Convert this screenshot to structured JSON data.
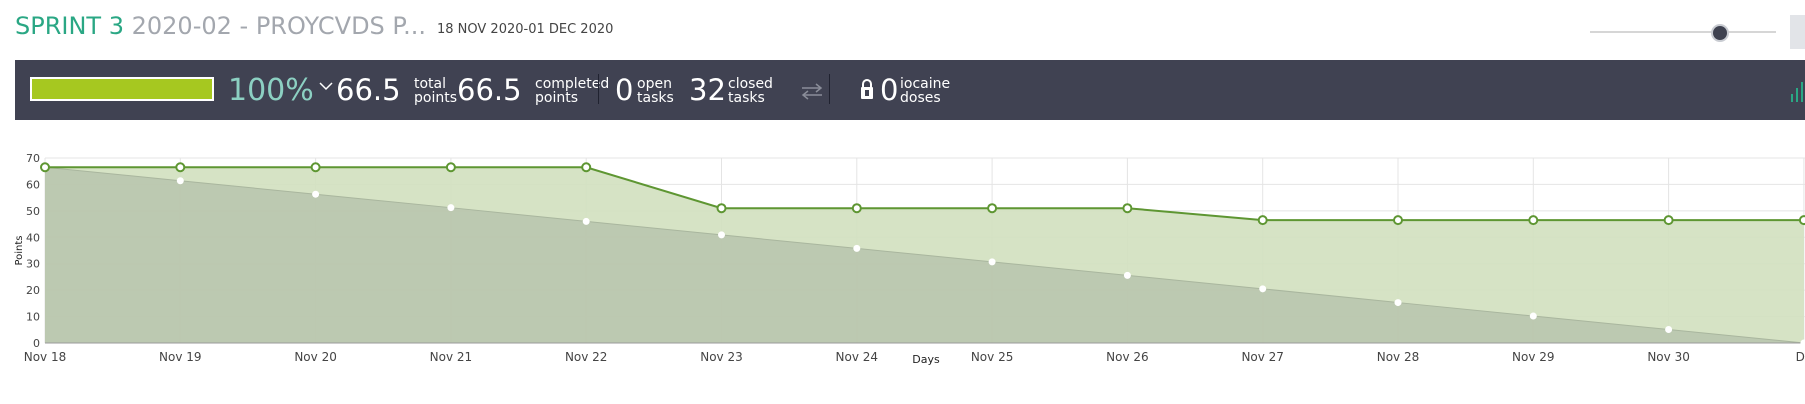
{
  "header": {
    "sprint_name": "SPRINT 3",
    "project_name": "2020-02 - PROYCVDS P...",
    "date_range": "18 NOV 2020-01 DEC 2020",
    "zoom_slider_value": 0.7
  },
  "stats": {
    "progress_percent_value": 100,
    "progress_percent": "100%",
    "total_points": "66.5",
    "total_points_label_1": "total",
    "total_points_label_2": "points",
    "completed_points": "66.5",
    "completed_points_label_1": "completed",
    "completed_points_label_2": "points",
    "open_tasks": "0",
    "open_tasks_label_1": "open",
    "open_tasks_label_2": "tasks",
    "closed_tasks": "32",
    "closed_tasks_label_1": "closed",
    "closed_tasks_label_2": "tasks",
    "iocaine_doses": "0",
    "iocaine_label_1": "iocaine",
    "iocaine_label_2": "doses"
  },
  "colors": {
    "sprint_name": "#2aa784",
    "progress_fill": "#a6c820",
    "stats_bar_bg": "#404252",
    "real_line": "#5e9632",
    "real_area": "#d1e0bf",
    "ideal_area": "#b9c5ae"
  },
  "chart_data": {
    "type": "area",
    "xlabel": "Days",
    "ylabel": "Points",
    "ylim": [
      0,
      70
    ],
    "yticks": [
      "0",
      "10",
      "20",
      "30",
      "40",
      "50",
      "60",
      "70"
    ],
    "categories": [
      "Nov 18",
      "Nov 19",
      "Nov 20",
      "Nov 21",
      "Nov 22",
      "Nov 23",
      "Nov 24",
      "Nov 25",
      "Nov 26",
      "Nov 27",
      "Nov 28",
      "Nov 29",
      "Nov 30",
      "De"
    ],
    "grid": true,
    "series": [
      {
        "values": [
          66.5,
          66.5,
          66.5,
          66.5,
          66.5,
          51,
          51,
          51,
          51,
          46.5,
          46.5,
          46.5,
          46.5,
          46.5
        ]
      },
      {
        "values": [
          66.5,
          61.4,
          56.3,
          51.2,
          46.0,
          40.9,
          35.8,
          30.7,
          25.6,
          20.5,
          15.3,
          10.2,
          5.1,
          0
        ]
      }
    ]
  }
}
